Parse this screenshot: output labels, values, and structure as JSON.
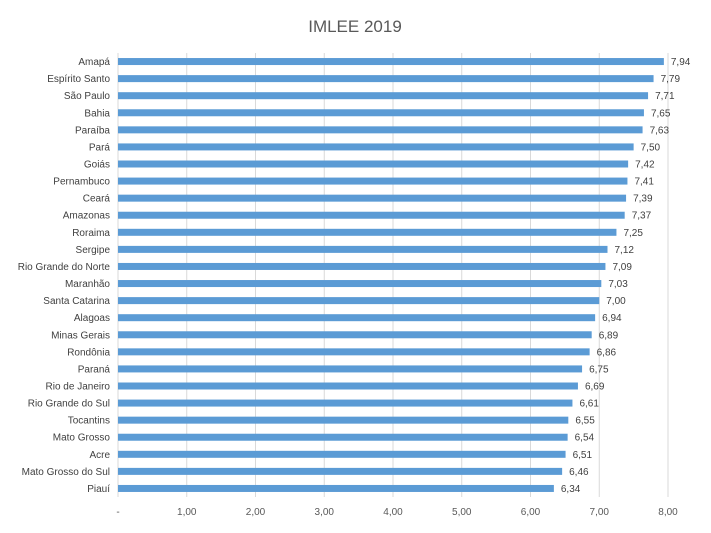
{
  "chart_data": {
    "type": "bar",
    "orientation": "horizontal",
    "title": "IMLEE 2019",
    "xlabel": "",
    "ylabel": "",
    "xlim": [
      0,
      8
    ],
    "grid": "vertical gridlines",
    "bar_color": "#5b9bd5",
    "gridline_color": "#d9d9d9",
    "x_ticks": [
      "-",
      "1,00",
      "2,00",
      "3,00",
      "4,00",
      "5,00",
      "6,00",
      "7,00",
      "8,00"
    ],
    "categories": [
      "Amapá",
      "Espírito Santo",
      "São Paulo",
      "Bahia",
      "Paraíba",
      "Pará",
      "Goiás",
      "Pernambuco",
      "Ceará",
      "Amazonas",
      "Roraima",
      "Sergipe",
      "Rio Grande do Norte",
      "Maranhão",
      "Santa Catarina",
      "Alagoas",
      "Minas Gerais",
      "Rondônia",
      "Paraná",
      "Rio de Janeiro",
      "Rio Grande do Sul",
      "Tocantins",
      "Mato Grosso",
      "Acre",
      "Mato Grosso do Sul",
      "Piauí"
    ],
    "values": [
      7.94,
      7.79,
      7.71,
      7.65,
      7.63,
      7.5,
      7.42,
      7.41,
      7.39,
      7.37,
      7.25,
      7.12,
      7.09,
      7.03,
      7.0,
      6.94,
      6.89,
      6.86,
      6.75,
      6.69,
      6.61,
      6.55,
      6.54,
      6.51,
      6.46,
      6.34
    ],
    "value_labels": [
      "7,94",
      "7,79",
      "7,71",
      "7,65",
      "7,63",
      "7,50",
      "7,42",
      "7,41",
      "7,39",
      "7,37",
      "7,25",
      "7,12",
      "7,09",
      "7,03",
      "7,00",
      "6,94",
      "6,89",
      "6,86",
      "6,75",
      "6,69",
      "6,61",
      "6,55",
      "6,54",
      "6,51",
      "6,46",
      "6,34"
    ]
  }
}
